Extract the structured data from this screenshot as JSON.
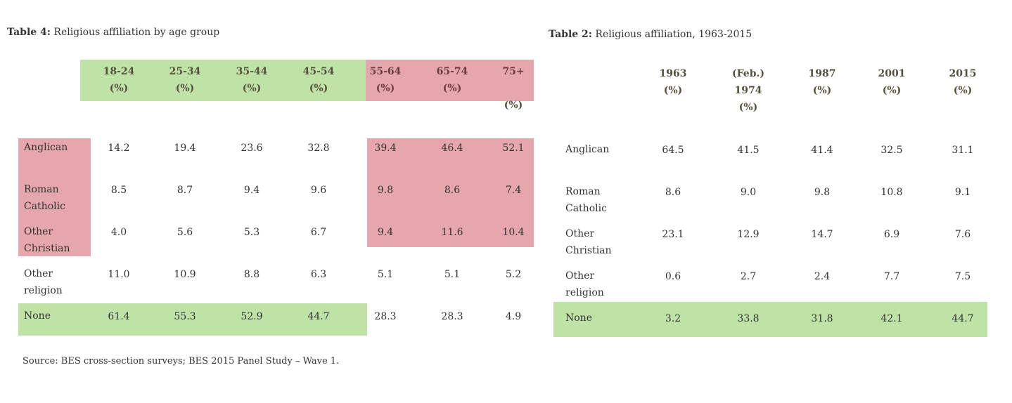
{
  "table4": {
    "title_bold": "Table 4:",
    "title_rest": " Religious affiliation by age group",
    "headers": [
      {
        "top": "18-24",
        "bottom": "(%)"
      },
      {
        "top": "25-34",
        "bottom": "(%)"
      },
      {
        "top": "35-44",
        "bottom": "(%)"
      },
      {
        "top": "45-54",
        "bottom": "(%)"
      },
      {
        "top": "55-64",
        "bottom": "(%)"
      },
      {
        "top": "65-74",
        "bottom": "(%)"
      },
      {
        "top": "75+",
        "bottom": "(%)"
      }
    ],
    "rows": [
      {
        "label1": "Anglican",
        "label2": "",
        "values": [
          "14.2",
          "19.4",
          "23.6",
          "32.8",
          "39.4",
          "46.4",
          "52.1"
        ]
      },
      {
        "label1": "Roman",
        "label2": "Catholic",
        "values": [
          "8.5",
          "8.7",
          "9.4",
          "9.6",
          "9.8",
          "8.6",
          "7.4"
        ]
      },
      {
        "label1": "Other",
        "label2": "Christian",
        "values": [
          "4.0",
          "5.6",
          "5.3",
          "6.7",
          "9.4",
          "11.6",
          "10.4"
        ]
      },
      {
        "label1": "Other",
        "label2": "religion",
        "values": [
          "11.0",
          "10.9",
          "8.8",
          "6.3",
          "5.1",
          "5.1",
          "5.2"
        ]
      },
      {
        "label1": "None",
        "label2": "",
        "values": [
          "61.4",
          "55.3",
          "52.9",
          "44.7",
          "28.3",
          "28.3",
          "4.9"
        ]
      }
    ],
    "source": "Source: BES cross-section surveys; BES 2015 Panel Study – Wave 1."
  },
  "table2": {
    "title_bold": "Table 2:",
    "title_rest": " Religious affiliation, 1963-2015",
    "headers": [
      {
        "l1": "1963",
        "l2": "(%)",
        "l3": ""
      },
      {
        "l1": "(Feb.)",
        "l2": "1974",
        "l3": "(%)"
      },
      {
        "l1": "1987",
        "l2": "(%)",
        "l3": ""
      },
      {
        "l1": "2001",
        "l2": "(%)",
        "l3": ""
      },
      {
        "l1": "2015",
        "l2": "(%)",
        "l3": ""
      }
    ],
    "rows": [
      {
        "label1": "Anglican",
        "label2": "",
        "values": [
          "64.5",
          "41.5",
          "41.4",
          "32.5",
          "31.1"
        ]
      },
      {
        "label1": "Roman",
        "label2": "Catholic",
        "values": [
          "8.6",
          "9.0",
          "9.8",
          "10.8",
          "9.1"
        ]
      },
      {
        "label1": "Other",
        "label2": "Christian",
        "values": [
          "23.1",
          "12.9",
          "14.7",
          "6.9",
          "7.6"
        ]
      },
      {
        "label1": "Other",
        "label2": "religion",
        "values": [
          "0.6",
          "2.7",
          "2.4",
          "7.7",
          "7.5"
        ]
      },
      {
        "label1": "None",
        "label2": "",
        "values": [
          "3.2",
          "33.8",
          "31.8",
          "42.1",
          "44.7"
        ]
      }
    ]
  },
  "colors": {
    "green": "#bfe3a6",
    "pink": "#e6a6ad"
  }
}
